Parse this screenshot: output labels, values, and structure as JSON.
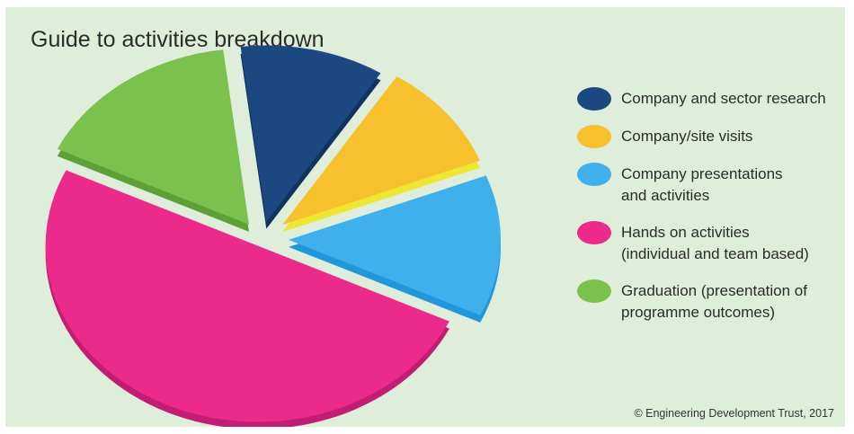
{
  "title": "Guide to activities breakdown",
  "credit": "© Engineering Development Trust, 2017",
  "chart_data": {
    "type": "pie",
    "style": "exploded 3D pie",
    "title": "Guide to activities breakdown",
    "legend_position": "right",
    "slices": [
      {
        "label": "Company and sector research",
        "lines": [
          "Company and sector research"
        ],
        "value": 11,
        "color": "#1b4880",
        "shade": "#12335e"
      },
      {
        "label": "Company/site visits",
        "lines": [
          "Company/site visits"
        ],
        "value": 10,
        "color": "#f6c12c",
        "shade": "#eee630"
      },
      {
        "label": "Company presentations and activities",
        "lines": [
          "Company presentations",
          "and activities"
        ],
        "value": 13,
        "color": "#3fb0ec",
        "shade": "#2196d8"
      },
      {
        "label": "Hands on activities (individual and team based)",
        "lines": [
          "Hands on activities",
          "(individual and team based)"
        ],
        "value": 50,
        "color": "#ec2a8c",
        "shade": "#c11d72"
      },
      {
        "label": "Graduation (presentation of programme outcomes)",
        "lines": [
          "Graduation (presentation of",
          "programme outcomes)"
        ],
        "value": 16,
        "color": "#7bc14d",
        "shade": "#5e9f37"
      }
    ]
  }
}
